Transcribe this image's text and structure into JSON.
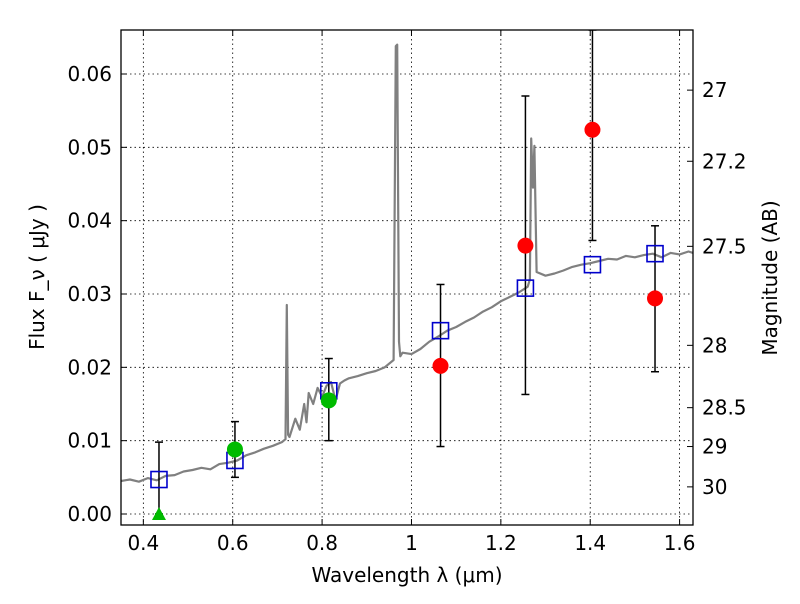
{
  "chart_data": {
    "type": "scatter",
    "title": "",
    "xlabel": "Wavelength  λ (μm)",
    "ylabel": "Flux  F_ν  ( μJy )",
    "ylabel_right": "Magnitude (AB)",
    "xlim": [
      0.35,
      1.63
    ],
    "ylim": [
      -0.0015,
      0.066
    ],
    "grid": true,
    "x_ticks": [
      0.4,
      0.6,
      0.8,
      1.0,
      1.2,
      1.4,
      1.6
    ],
    "x_tick_labels": [
      "0.4",
      "0.6",
      "0.8",
      "1",
      "1.2",
      "1.4",
      "1.6"
    ],
    "y_ticks": [
      0.0,
      0.01,
      0.02,
      0.03,
      0.04,
      0.05,
      0.06
    ],
    "y_tick_labels": [
      "0.00",
      "0.01",
      "0.02",
      "0.03",
      "0.04",
      "0.05",
      "0.06"
    ],
    "right_ticks": [
      {
        "label": "27",
        "flux": 0.0578
      },
      {
        "label": "27.2",
        "flux": 0.0481
      },
      {
        "label": "27.5",
        "flux": 0.0365
      },
      {
        "label": "28",
        "flux": 0.023
      },
      {
        "label": "28.5",
        "flux": 0.0145
      },
      {
        "label": "29",
        "flux": 0.0092
      },
      {
        "label": "30",
        "flux": 0.0037
      }
    ],
    "series": [
      {
        "kind": "line",
        "color": "#808080",
        "x": [
          0.35,
          0.37,
          0.39,
          0.41,
          0.43,
          0.45,
          0.47,
          0.49,
          0.51,
          0.53,
          0.55,
          0.57,
          0.59,
          0.61,
          0.63,
          0.65,
          0.67,
          0.69,
          0.71,
          0.718,
          0.721,
          0.724,
          0.727,
          0.74,
          0.75,
          0.76,
          0.765,
          0.77,
          0.78,
          0.79,
          0.8,
          0.81,
          0.82,
          0.83,
          0.84,
          0.85,
          0.86,
          0.88,
          0.9,
          0.92,
          0.94,
          0.96,
          0.965,
          0.968,
          0.972,
          0.975,
          0.98,
          1.0,
          1.02,
          1.04,
          1.06,
          1.08,
          1.1,
          1.12,
          1.14,
          1.16,
          1.18,
          1.2,
          1.22,
          1.24,
          1.26,
          1.265,
          1.268,
          1.272,
          1.275,
          1.28,
          1.3,
          1.32,
          1.34,
          1.36,
          1.38,
          1.4,
          1.42,
          1.44,
          1.46,
          1.48,
          1.5,
          1.52,
          1.54,
          1.56,
          1.58,
          1.6,
          1.62,
          1.63
        ],
        "y": [
          0.0045,
          0.0047,
          0.0044,
          0.0049,
          0.0046,
          0.0052,
          0.0053,
          0.0058,
          0.006,
          0.0063,
          0.0061,
          0.0068,
          0.007,
          0.0073,
          0.008,
          0.0084,
          0.0089,
          0.0093,
          0.0098,
          0.0102,
          0.0285,
          0.0108,
          0.0105,
          0.013,
          0.0115,
          0.015,
          0.0125,
          0.0165,
          0.015,
          0.0172,
          0.016,
          0.0175,
          0.018,
          0.0155,
          0.0178,
          0.0182,
          0.0185,
          0.0188,
          0.0192,
          0.0195,
          0.02,
          0.021,
          0.0638,
          0.064,
          0.0235,
          0.0215,
          0.022,
          0.0218,
          0.0225,
          0.0235,
          0.0242,
          0.025,
          0.0255,
          0.0262,
          0.0268,
          0.0276,
          0.0282,
          0.029,
          0.0296,
          0.0302,
          0.031,
          0.032,
          0.0512,
          0.0445,
          0.0502,
          0.033,
          0.0325,
          0.0328,
          0.0332,
          0.0337,
          0.034,
          0.0342,
          0.0345,
          0.0348,
          0.0347,
          0.0352,
          0.035,
          0.0353,
          0.0355,
          0.035,
          0.0356,
          0.0354,
          0.0358,
          0.0356
        ]
      },
      {
        "kind": "open-square",
        "color": "#0000cc",
        "x": [
          0.435,
          0.605,
          0.815,
          1.065,
          1.255,
          1.405,
          1.545
        ],
        "y": [
          0.0047,
          0.0073,
          0.0168,
          0.025,
          0.0308,
          0.034,
          0.0355
        ]
      },
      {
        "kind": "filled-circle",
        "color": "#00bb00",
        "x": [
          0.605,
          0.815
        ],
        "y": [
          0.0088,
          0.0155
        ],
        "errors": [
          [
            0.005,
            0.0126
          ],
          [
            0.01,
            0.0212
          ]
        ]
      },
      {
        "kind": "filled-triangle",
        "color": "#00bb00",
        "x": [
          0.435
        ],
        "y": [
          0.0
        ],
        "errors": [
          [
            0.0,
            0.0098
          ]
        ]
      },
      {
        "kind": "filled-circle",
        "color": "#ff0000",
        "x": [
          1.065,
          1.255,
          1.405,
          1.545
        ],
        "y": [
          0.0202,
          0.0366,
          0.0524,
          0.0294
        ],
        "errors": [
          [
            0.0092,
            0.0313
          ],
          [
            0.0163,
            0.057
          ],
          [
            0.0373,
            0.066
          ],
          [
            0.0194,
            0.0393
          ]
        ]
      }
    ]
  }
}
